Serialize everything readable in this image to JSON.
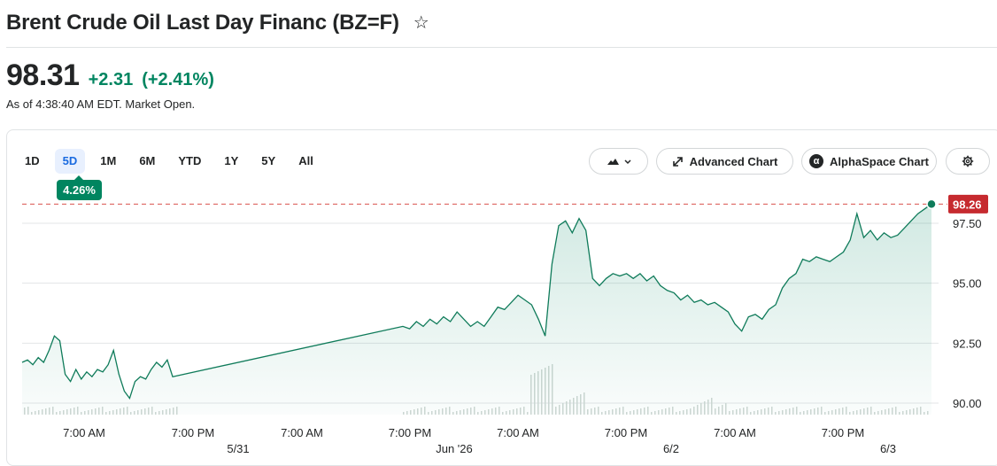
{
  "header": {
    "title": "Brent Crude Oil Last Day Financ (BZ=F)",
    "price": "98.31",
    "change": "+2.31",
    "change_pct": "(+2.41%)",
    "as_of": "As of 4:38:40 AM EDT. Market Open."
  },
  "ranges": {
    "items": [
      "1D",
      "5D",
      "1M",
      "6M",
      "YTD",
      "1Y",
      "5Y",
      "All"
    ],
    "active": "5D",
    "tooltip": "4.26%"
  },
  "toolbar": {
    "chart_type_icon": "mountain-chart-icon",
    "advanced_chart": "Advanced Chart",
    "alphaspace_chart": "AlphaSpace Chart",
    "alphaspace_icon": "α",
    "settings_icon": "gear-icon"
  },
  "colors": {
    "up": "#008560",
    "line": "#0f7b5a",
    "marker_tag": "#c62a2f",
    "active_range_bg": "#e8f0fe",
    "active_range_text": "#1a6be0"
  },
  "chart_data": {
    "type": "area",
    "current_price_label": "98.26",
    "y_ticks": [
      "97.50",
      "95.00",
      "92.50",
      "90.00"
    ],
    "y_tick_values": [
      97.5,
      95.0,
      92.5,
      90.0
    ],
    "x_ticks": [
      "7:00 AM",
      "7:00 PM",
      "7:00 AM",
      "7:00 PM",
      "7:00 AM",
      "7:00 PM",
      "7:00 AM",
      "7:00 PM"
    ],
    "date_ticks": [
      "5/31",
      "Jun '26",
      "6/2",
      "6/3"
    ],
    "grid": true,
    "series": [
      {
        "values": [
          91.7,
          91.8,
          91.6,
          91.9,
          91.7,
          92.2,
          92.8,
          92.6,
          91.2,
          90.9,
          91.4,
          91.0,
          91.3,
          91.1,
          91.4,
          91.3,
          91.6,
          92.2,
          91.2,
          90.5,
          90.2,
          90.9,
          91.1,
          91.0,
          91.4,
          91.7,
          91.5,
          91.8,
          91.1,
          93.2,
          93.1,
          93.4,
          93.2,
          93.5,
          93.3,
          93.6,
          93.4,
          93.8,
          93.5,
          93.2,
          93.4,
          93.2,
          93.6,
          94.0,
          93.9,
          94.2,
          94.5,
          94.3,
          94.1,
          93.5,
          92.8,
          95.8,
          97.4,
          97.6,
          97.1,
          97.7,
          97.2,
          95.2,
          94.9,
          95.2,
          95.4,
          95.3,
          95.4,
          95.2,
          95.4,
          95.1,
          95.3,
          94.9,
          94.7,
          94.6,
          94.3,
          94.5,
          94.2,
          94.3,
          94.1,
          94.2,
          94.0,
          93.8,
          93.3,
          93.0,
          93.6,
          93.7,
          93.5,
          93.9,
          94.1,
          94.8,
          95.2,
          95.4,
          96.0,
          95.9,
          96.1,
          96.0,
          95.9,
          96.1,
          96.3,
          96.8,
          97.9,
          96.9,
          97.2,
          96.8,
          97.1,
          96.9,
          97.0,
          97.3,
          97.6,
          97.9,
          98.1,
          98.3
        ]
      }
    ]
  }
}
